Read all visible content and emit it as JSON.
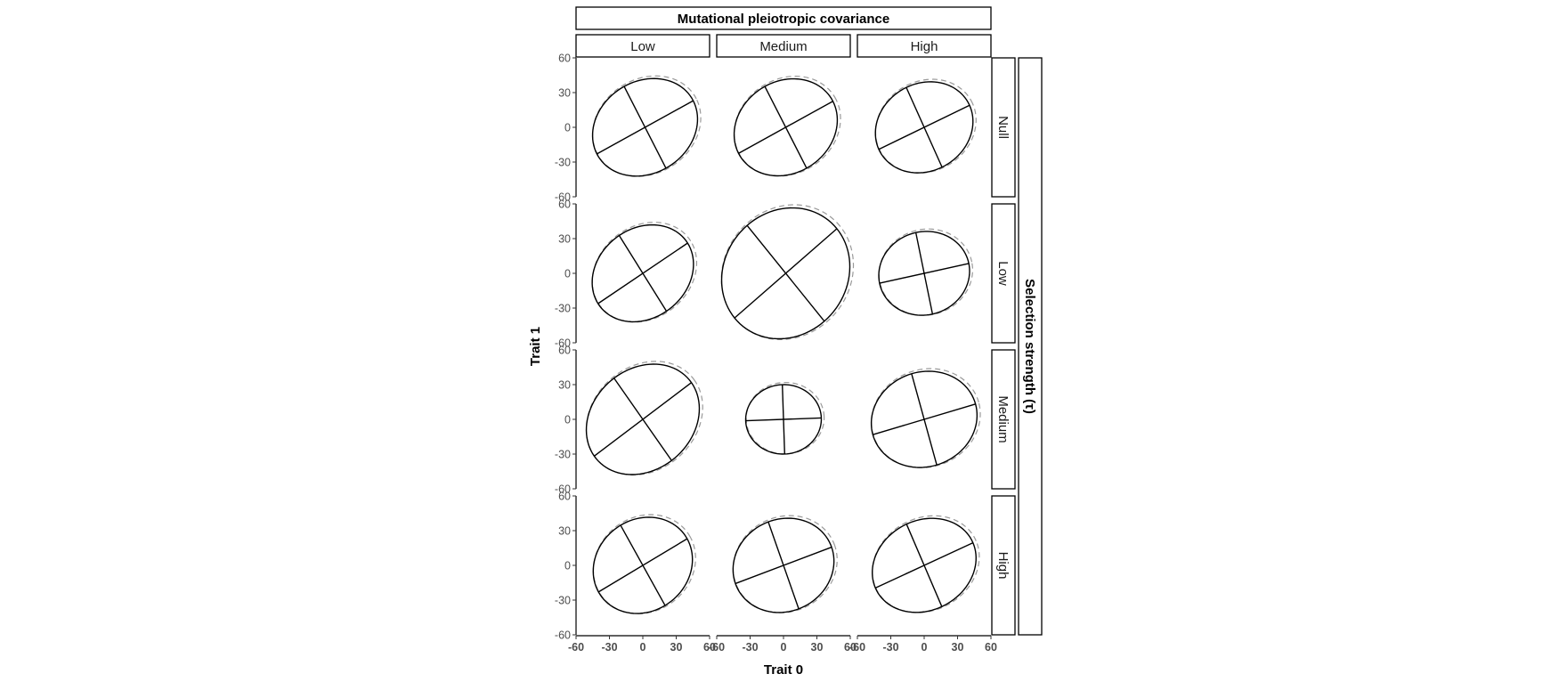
{
  "chart_data": {
    "type": "faceted-ellipse",
    "title": "Mutational pleiotropic covariance",
    "col_facets": [
      "Low",
      "Medium",
      "High"
    ],
    "row_facets": [
      "Null",
      "Low",
      "Medium",
      "High"
    ],
    "row_facet_title": "Selection strength (τ)",
    "xlabel": "Trait 0",
    "ylabel": "Trait 1",
    "xlim": [
      -60,
      60
    ],
    "ylim": [
      -60,
      60
    ],
    "x_ticks": [
      "-60",
      "-30",
      "0",
      "30",
      "60"
    ],
    "y_ticks": [
      "-60",
      "-30",
      "0",
      "30",
      "60"
    ],
    "grid": false,
    "series": [
      {
        "role": "observed",
        "line": "solid",
        "color": "#000000"
      },
      {
        "role": "reference",
        "line": "dashed",
        "color": "#9a9a9a"
      }
    ],
    "panels": [
      {
        "row": "Null",
        "col": "Low",
        "cx": 2,
        "cy": 0,
        "semi_major": 49,
        "semi_minor": 40,
        "angle_deg": 28
      },
      {
        "row": "Null",
        "col": "Medium",
        "cx": 2,
        "cy": 0,
        "semi_major": 48,
        "semi_minor": 40,
        "angle_deg": 28
      },
      {
        "row": "Null",
        "col": "High",
        "cx": 0,
        "cy": 0,
        "semi_major": 45,
        "semi_minor": 38,
        "angle_deg": 25
      },
      {
        "row": "Low",
        "col": "Low",
        "cx": 0,
        "cy": 0,
        "semi_major": 48,
        "semi_minor": 39,
        "angle_deg": 33
      },
      {
        "row": "Low",
        "col": "Medium",
        "cx": 2,
        "cy": 0,
        "semi_major": 60,
        "semi_minor": 54,
        "angle_deg": 40
      },
      {
        "row": "Low",
        "col": "High",
        "cx": 0,
        "cy": 0,
        "semi_major": 41,
        "semi_minor": 36,
        "angle_deg": 12
      },
      {
        "row": "Medium",
        "col": "Low",
        "cx": 0,
        "cy": 0,
        "semi_major": 54,
        "semi_minor": 44,
        "angle_deg": 36
      },
      {
        "row": "Medium",
        "col": "Medium",
        "cx": 0,
        "cy": 0,
        "semi_major": 34,
        "semi_minor": 30,
        "angle_deg": 2
      },
      {
        "row": "Medium",
        "col": "High",
        "cx": 0,
        "cy": 0,
        "semi_major": 48,
        "semi_minor": 41,
        "angle_deg": 16
      },
      {
        "row": "High",
        "col": "Low",
        "cx": 0,
        "cy": 0,
        "semi_major": 46,
        "semi_minor": 40,
        "angle_deg": 30
      },
      {
        "row": "High",
        "col": "Medium",
        "cx": 0,
        "cy": 0,
        "semi_major": 46,
        "semi_minor": 40,
        "angle_deg": 20
      },
      {
        "row": "High",
        "col": "High",
        "cx": 0,
        "cy": 0,
        "semi_major": 48,
        "semi_minor": 39,
        "angle_deg": 24
      }
    ]
  }
}
